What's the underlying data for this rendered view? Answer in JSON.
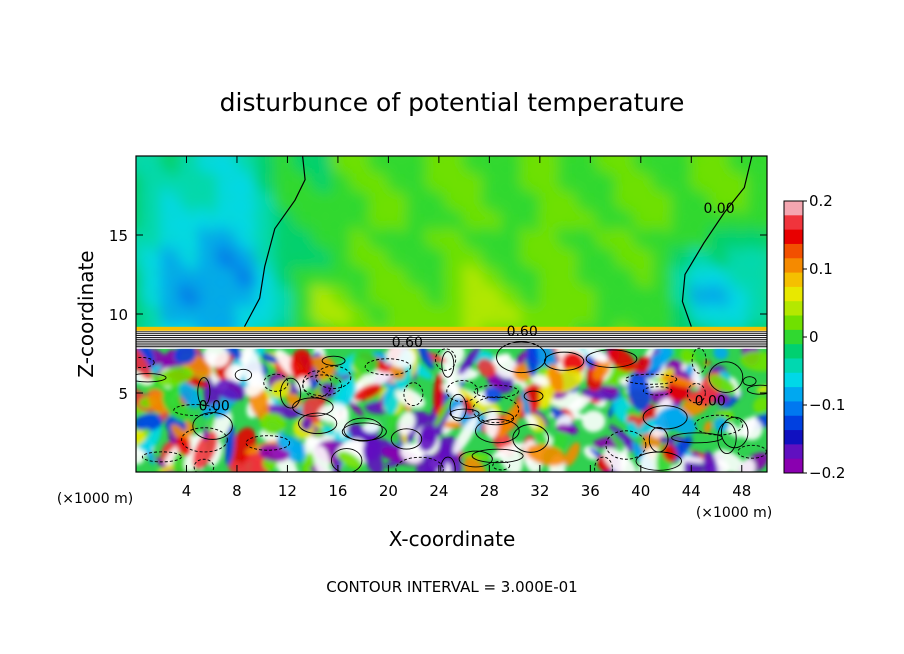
{
  "chart_data": {
    "type": "heatmap",
    "title": "disturbunce of potential temperature",
    "xlabel": "X-coordinate",
    "ylabel": "Z-coordinate",
    "x_unit": "(×1000 m)",
    "z_unit": "(×1000 m)",
    "xlim": [
      0,
      50
    ],
    "ylim": [
      0,
      20
    ],
    "x_ticks": [
      4,
      8,
      12,
      16,
      20,
      24,
      28,
      32,
      36,
      40,
      44,
      48
    ],
    "y_ticks": [
      5,
      10,
      15
    ],
    "colorbar": {
      "range": [
        -0.2,
        0.2
      ],
      "ticks": [
        {
          "value": 0.2,
          "label": "0.2"
        },
        {
          "value": 0.1,
          "label": "0.1"
        },
        {
          "value": 0,
          "label": "0"
        },
        {
          "value": -0.1,
          "label": "−0.1"
        },
        {
          "value": -0.2,
          "label": "−0.2"
        }
      ],
      "colors": [
        "#f4a6b0",
        "#f0343c",
        "#e80000",
        "#f25000",
        "#f58a00",
        "#f5c000",
        "#e8e800",
        "#b4e800",
        "#70e000",
        "#30d830",
        "#00d070",
        "#00d8b0",
        "#00d8e8",
        "#00a8f0",
        "#0078f0",
        "#0040e0",
        "#1010c0",
        "#6010c0",
        "#8a00b0"
      ]
    },
    "contour_interval": "CONTOUR INTERVAL = 3.000E-01",
    "contour_labels": [
      {
        "text": "0.00",
        "x": 46.2,
        "z": 16.4
      },
      {
        "text": "0.60",
        "x": 30.6,
        "z": 8.6
      },
      {
        "text": "0.60",
        "x": 21.5,
        "z": 7.9
      },
      {
        "text": "0.00",
        "x": 6.2,
        "z": 3.9
      },
      {
        "text": "0.00",
        "x": 45.5,
        "z": 4.2
      }
    ],
    "regions": {
      "upper_layer_z": [
        9,
        20
      ],
      "inversion_z": [
        7.8,
        9.0
      ],
      "lower_layer_z": [
        0,
        7.8
      ]
    }
  }
}
